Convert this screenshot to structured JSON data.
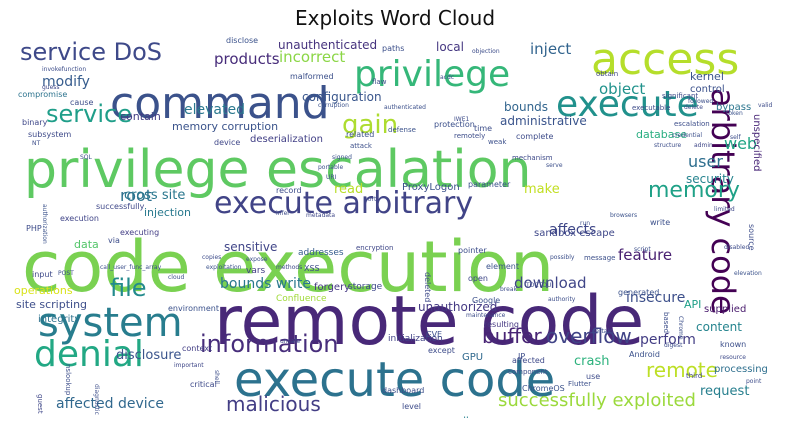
{
  "chart_data": {
    "type": "wordcloud",
    "title": "Exploits Word Cloud",
    "colormap": "viridis",
    "background": "#ffffff",
    "words": [
      {
        "text": "code execution",
        "weight": 1.0,
        "color": "#7ad151"
      },
      {
        "text": "remote code",
        "weight": 0.85,
        "color": "#482878"
      },
      {
        "text": "privilege escalation",
        "weight": 0.8,
        "color": "#5ec962"
      },
      {
        "text": "execute code",
        "weight": 0.62,
        "color": "#2c728e"
      },
      {
        "text": "command",
        "weight": 0.55,
        "color": "#3b528b"
      },
      {
        "text": "access",
        "weight": 0.5,
        "color": "#b5de2b"
      },
      {
        "text": "system",
        "weight": 0.48,
        "color": "#287d8e"
      },
      {
        "text": "execute arbitrary",
        "weight": 0.45,
        "color": "#414487"
      },
      {
        "text": "execute",
        "weight": 0.45,
        "color": "#21918c"
      },
      {
        "text": "denial",
        "weight": 0.42,
        "color": "#22a884"
      },
      {
        "text": "arbitrary code",
        "weight": 0.42,
        "color": "#440154"
      },
      {
        "text": "privilege",
        "weight": 0.4,
        "color": "#35b779"
      },
      {
        "text": "information",
        "weight": 0.32,
        "color": "#472d7b"
      },
      {
        "text": "service DoS",
        "weight": 0.3,
        "color": "#3e4989"
      },
      {
        "text": "service",
        "weight": 0.3,
        "color": "#1f9e89"
      },
      {
        "text": "gain",
        "weight": 0.28,
        "color": "#addc30"
      },
      {
        "text": "file",
        "weight": 0.28,
        "color": "#238a8d"
      },
      {
        "text": "malicious",
        "weight": 0.26,
        "color": "#433e85"
      },
      {
        "text": "buffer",
        "weight": 0.25,
        "color": "#482475"
      },
      {
        "text": "overflow",
        "weight": 0.25,
        "color": "#414487"
      },
      {
        "text": "successfully exploited",
        "weight": 0.22,
        "color": "#9bd93c"
      },
      {
        "text": "function",
        "weight": 0.22,
        "color": "#31688e"
      },
      {
        "text": "memory",
        "weight": 0.22,
        "color": "#1fa187"
      },
      {
        "text": "remote",
        "weight": 0.22,
        "color": "#bddf26"
      },
      {
        "text": "affected device",
        "weight": 0.2,
        "color": "#31688e"
      },
      {
        "text": "products",
        "weight": 0.2,
        "color": "#472c7a"
      },
      {
        "text": "web",
        "weight": 0.2,
        "color": "#21a685"
      },
      {
        "text": "root",
        "weight": 0.2,
        "color": "#2d708e"
      },
      {
        "text": "user",
        "weight": 0.2,
        "color": "#2e6e8e"
      },
      {
        "text": "inject",
        "weight": 0.2,
        "color": "#32648e"
      },
      {
        "text": "elevated",
        "weight": 0.19,
        "color": "#2a788e"
      },
      {
        "text": "modify",
        "weight": 0.18,
        "color": "#365c8d"
      },
      {
        "text": "disclosure",
        "weight": 0.18,
        "color": "#3a548c"
      },
      {
        "text": "feature",
        "weight": 0.18,
        "color": "#482071"
      },
      {
        "text": "object",
        "weight": 0.18,
        "color": "#20928c"
      },
      {
        "text": "download",
        "weight": 0.18,
        "color": "#404688"
      },
      {
        "text": "bounds write",
        "weight": 0.17,
        "color": "#2a788e"
      },
      {
        "text": "perform",
        "weight": 0.17,
        "color": "#433d84"
      },
      {
        "text": "request",
        "weight": 0.16,
        "color": "#277f8e"
      },
      {
        "text": "incorrect",
        "weight": 0.16,
        "color": "#8bd646"
      },
      {
        "text": "configuration",
        "weight": 0.15,
        "color": "#39568c"
      },
      {
        "text": "unauthenticated",
        "weight": 0.15,
        "color": "#46337e"
      },
      {
        "text": "local",
        "weight": 0.15,
        "color": "#453781"
      },
      {
        "text": "cross site",
        "weight": 0.15,
        "color": "#2a778e"
      },
      {
        "text": "affects",
        "weight": 0.15,
        "color": "#3f4788"
      },
      {
        "text": "make",
        "weight": 0.15,
        "color": "#c2df23"
      },
      {
        "text": "memory corruption",
        "weight": 0.14,
        "color": "#3a538b"
      },
      {
        "text": "bounds",
        "weight": 0.14,
        "color": "#32658e"
      },
      {
        "text": "administrative",
        "weight": 0.13,
        "color": "#3a548c"
      },
      {
        "text": "insecure",
        "weight": 0.14,
        "color": "#3c4f8a"
      },
      {
        "text": "crash",
        "weight": 0.13,
        "color": "#2db27d"
      },
      {
        "text": "read",
        "weight": 0.13,
        "color": "#b8de29"
      },
      {
        "text": "security",
        "weight": 0.13,
        "color": "#25838e"
      },
      {
        "text": "sensitive",
        "weight": 0.12,
        "color": "#404588"
      },
      {
        "text": "database",
        "weight": 0.12,
        "color": "#28ae80"
      },
      {
        "text": "kernel",
        "weight": 0.12,
        "color": "#3a538b"
      },
      {
        "text": "unauthorized",
        "weight": 0.12,
        "color": "#443983"
      },
      {
        "text": "content",
        "weight": 0.12,
        "color": "#25848e"
      },
      {
        "text": "site scripting",
        "weight": 0.11,
        "color": "#3d4e8a"
      },
      {
        "text": "operations",
        "weight": 0.11,
        "color": "#d8e219"
      },
      {
        "text": "data",
        "weight": 0.11,
        "color": "#52c569"
      },
      {
        "text": "injection",
        "weight": 0.11,
        "color": "#29798e"
      },
      {
        "text": "contain",
        "weight": 0.1,
        "color": "#433e85"
      },
      {
        "text": "deserialization",
        "weight": 0.1,
        "color": "#424086"
      },
      {
        "text": "sandbox escape",
        "weight": 0.09,
        "color": "#3f4889"
      },
      {
        "text": "ProxyLogon",
        "weight": 0.09,
        "color": "#3b518b"
      },
      {
        "text": "API",
        "weight": 0.09,
        "color": "#1fa088"
      },
      {
        "text": "forgery",
        "weight": 0.09,
        "color": "#453882"
      },
      {
        "text": "supplied",
        "weight": 0.09,
        "color": "#481a6c"
      },
      {
        "text": "integrity",
        "weight": 0.09,
        "color": "#2c728e"
      },
      {
        "text": "sandbox",
        "weight": 0.09,
        "color": "#26818e"
      },
      {
        "text": "GPU",
        "weight": 0.09,
        "color": "#30698e"
      },
      {
        "text": "unspecified",
        "weight": 0.09,
        "color": "#482677"
      },
      {
        "text": "processing",
        "weight": 0.09,
        "color": "#2e6f8e"
      },
      {
        "text": "specific",
        "weight": 0.09,
        "color": "#48186a"
      },
      {
        "text": "addresses",
        "weight": 0.08,
        "color": "#365d8d"
      },
      {
        "text": "vars",
        "weight": 0.08,
        "color": "#433d84"
      },
      {
        "text": "storage",
        "weight": 0.08,
        "color": "#3e4989"
      },
      {
        "text": "Confluence",
        "weight": 0.08,
        "color": "#a0da39"
      },
      {
        "text": "subsystem",
        "weight": 0.08,
        "color": "#3e4a89"
      },
      {
        "text": "execution",
        "weight": 0.08,
        "color": "#404588"
      },
      {
        "text": "compromise",
        "weight": 0.08,
        "color": "#2c738e"
      },
      {
        "text": "malformed",
        "weight": 0.08,
        "color": "#3c508b"
      },
      {
        "text": "bypass",
        "weight": 0.08,
        "color": "#2b758e"
      },
      {
        "text": "control",
        "weight": 0.08,
        "color": "#3b518b"
      },
      {
        "text": "exploited",
        "weight": 0.08,
        "color": "#3b528b"
      },
      {
        "text": "initialization",
        "weight": 0.07,
        "color": "#414287"
      },
      {
        "text": "dashboard",
        "weight": 0.07,
        "color": "#3c4f8a"
      },
      {
        "text": "source",
        "weight": 0.07,
        "color": "#3d4d8a"
      },
      {
        "text": "context",
        "weight": 0.07,
        "color": "#433e85"
      },
      {
        "text": "environment",
        "weight": 0.07,
        "color": "#3b518b"
      },
      {
        "text": "disclose",
        "weight": 0.07,
        "color": "#3b528b"
      },
      {
        "text": "cause",
        "weight": 0.07,
        "color": "#3d4e8a"
      },
      {
        "text": "binary",
        "weight": 0.07,
        "color": "#3f4889"
      },
      {
        "text": "successfully",
        "weight": 0.07,
        "color": "#3f4889"
      },
      {
        "text": "executing",
        "weight": 0.07,
        "color": "#433e85"
      },
      {
        "text": "element",
        "weight": 0.07,
        "color": "#3b528b"
      },
      {
        "text": "Google",
        "weight": 0.07,
        "color": "#3c508b"
      },
      {
        "text": "resulting",
        "weight": 0.07,
        "color": "#453781"
      },
      {
        "text": "deleted",
        "weight": 0.07,
        "color": "#3e4a89"
      },
      {
        "text": "except",
        "weight": 0.07,
        "color": "#3e4c8a"
      },
      {
        "text": "affected",
        "weight": 0.07,
        "color": "#3e4989"
      },
      {
        "text": "component",
        "weight": 0.07,
        "color": "#3d4e8a"
      },
      {
        "text": "Android",
        "weight": 0.07,
        "color": "#3b518b"
      },
      {
        "text": "ChromeOS",
        "weight": 0.07,
        "color": "#3b528b"
      },
      {
        "text": "Flutter",
        "weight": 0.07,
        "color": "#3c508b"
      },
      {
        "text": "record",
        "weight": 0.07,
        "color": "#3d4d8a"
      },
      {
        "text": "level",
        "weight": 0.07,
        "color": "#3e4c8a"
      },
      {
        "text": "input",
        "weight": 0.07,
        "color": "#3e4a89"
      },
      {
        "text": "third",
        "weight": 0.06,
        "color": "#3f4788"
      },
      {
        "text": "time",
        "weight": 0.06,
        "color": "#3d4e8a"
      },
      {
        "text": "paths",
        "weight": 0.06,
        "color": "#3c4f8a"
      },
      {
        "text": "related",
        "weight": 0.06,
        "color": "#3b528b"
      },
      {
        "text": "protection",
        "weight": 0.06,
        "color": "#3c508b"
      },
      {
        "text": "remotely",
        "weight": 0.06,
        "color": "#3d4d8a"
      },
      {
        "text": "complete",
        "weight": 0.06,
        "color": "#3e4c8a"
      },
      {
        "text": "mechanism",
        "weight": 0.06,
        "color": "#3e4a89"
      },
      {
        "text": "encryption",
        "weight": 0.06,
        "color": "#3f4788"
      },
      {
        "text": "pointer",
        "weight": 0.06,
        "color": "#3d4e8a"
      },
      {
        "text": "message",
        "weight": 0.06,
        "color": "#3c4f8a"
      },
      {
        "text": "parameter",
        "weight": 0.06,
        "color": "#3b528b"
      },
      {
        "text": "write",
        "weight": 0.06,
        "color": "#3c508b"
      },
      {
        "text": "via",
        "weight": 0.06,
        "color": "#3d4d8a"
      },
      {
        "text": "PHP",
        "weight": 0.06,
        "color": "#3e4c8a"
      },
      {
        "text": "XSS",
        "weight": 0.06,
        "color": "#3e4a89"
      },
      {
        "text": "open",
        "weight": 0.06,
        "color": "#3f4788"
      },
      {
        "text": "based",
        "weight": 0.06,
        "color": "#3d4e8a"
      },
      {
        "text": "known",
        "weight": 0.06,
        "color": "#3c4f8a"
      },
      {
        "text": "generated",
        "weight": 0.06,
        "color": "#3b528b"
      },
      {
        "text": "CVE",
        "weight": 0.06,
        "color": "#3c508b"
      },
      {
        "text": "IP",
        "weight": 0.06,
        "color": "#3d4d8a"
      },
      {
        "text": "use",
        "weight": 0.06,
        "color": "#3e4c8a"
      },
      {
        "text": "critical",
        "weight": 0.06,
        "color": "#3e4a89"
      },
      {
        "text": "guest",
        "weight": 0.06,
        "color": "#3f4788"
      },
      {
        "text": "nslookup",
        "weight": 0.06,
        "color": "#3d4e8a"
      },
      {
        "text": "attack",
        "weight": 0.05,
        "color": "#3c4f8a"
      },
      {
        "text": "defense",
        "weight": 0.05,
        "color": "#3b528b"
      },
      {
        "text": "weak",
        "weight": 0.05,
        "color": "#3c508b"
      },
      {
        "text": "flaw",
        "weight": 0.05,
        "color": "#3d4d8a"
      },
      {
        "text": "executable",
        "weight": 0.05,
        "color": "#3e4c8a"
      },
      {
        "text": "significant",
        "weight": 0.05,
        "color": "#3e4a89"
      },
      {
        "text": "obtain",
        "weight": 0.05,
        "color": "#3f4788"
      },
      {
        "text": "escalation",
        "weight": 0.05,
        "color": "#3d4e8a"
      },
      {
        "text": "followed",
        "weight": 0.05,
        "color": "#3c4f8a"
      },
      {
        "text": "token",
        "weight": 0.05,
        "color": "#3b528b"
      },
      {
        "text": "credential",
        "weight": 0.05,
        "color": "#3c508b"
      },
      {
        "text": "self",
        "weight": 0.05,
        "color": "#3d4d8a"
      },
      {
        "text": "valid",
        "weight": 0.05,
        "color": "#3e4c8a"
      },
      {
        "text": "delete",
        "weight": 0.05,
        "color": "#3e4a89"
      },
      {
        "text": "admin",
        "weight": 0.05,
        "color": "#3f4788"
      },
      {
        "text": "structure",
        "weight": 0.05,
        "color": "#3d4e8a"
      },
      {
        "text": "serve",
        "weight": 0.05,
        "color": "#3c4f8a"
      },
      {
        "text": "signed",
        "weight": 0.05,
        "color": "#3b528b"
      },
      {
        "text": "portable",
        "weight": 0.05,
        "color": "#3c508b"
      },
      {
        "text": "URI",
        "weight": 0.05,
        "color": "#3d4d8a"
      },
      {
        "text": "infer",
        "weight": 0.05,
        "color": "#3e4c8a"
      },
      {
        "text": "port",
        "weight": 0.05,
        "color": "#3e4a89"
      },
      {
        "text": "metadata",
        "weight": 0.05,
        "color": "#3f4788"
      },
      {
        "text": "run",
        "weight": 0.05,
        "color": "#3d4e8a"
      },
      {
        "text": "possibly",
        "weight": 0.05,
        "color": "#3c4f8a"
      },
      {
        "text": "browsers",
        "weight": 0.05,
        "color": "#3b528b"
      },
      {
        "text": "script",
        "weight": 0.05,
        "color": "#3c508b"
      },
      {
        "text": "break",
        "weight": 0.05,
        "color": "#3d4d8a"
      },
      {
        "text": "maintenance",
        "weight": 0.05,
        "color": "#3e4c8a"
      },
      {
        "text": "TOCTOU",
        "weight": 0.05,
        "color": "#3e4a89"
      },
      {
        "text": "limited",
        "weight": 0.05,
        "color": "#3f4788"
      },
      {
        "text": "authority",
        "weight": 0.05,
        "color": "#3d4e8a"
      },
      {
        "text": "Chrome",
        "weight": 0.05,
        "color": "#3c4f8a"
      },
      {
        "text": "elevation",
        "weight": 0.05,
        "color": "#3b528b"
      },
      {
        "text": "certain",
        "weight": 0.05,
        "color": "#3c508b"
      },
      {
        "text": "digest",
        "weight": 0.05,
        "color": "#3d4d8a"
      },
      {
        "text": "point",
        "weight": 0.05,
        "color": "#3e4c8a"
      },
      {
        "text": "unsafe",
        "weight": 0.05,
        "color": "#3e4a89"
      },
      {
        "text": "important",
        "weight": 0.05,
        "color": "#3f4788"
      },
      {
        "text": "diagnostic",
        "weight": 0.05,
        "color": "#3d4e8a"
      },
      {
        "text": "POST",
        "weight": 0.05,
        "color": "#3c4f8a"
      },
      {
        "text": "authorization",
        "weight": 0.05,
        "color": "#3b528b"
      },
      {
        "text": "call_user_func_array",
        "weight": 0.05,
        "color": "#3c508b"
      },
      {
        "text": "invokefunction",
        "weight": 0.05,
        "color": "#3d4d8a"
      },
      {
        "text": "copies",
        "weight": 0.05,
        "color": "#3e4c8a"
      },
      {
        "text": "methods",
        "weight": 0.05,
        "color": "#3e4a89"
      },
      {
        "text": "guess",
        "weight": 0.05,
        "color": "#3f4788"
      },
      {
        "text": "NT",
        "weight": 0.05,
        "color": "#3d4e8a"
      },
      {
        "text": "SQL",
        "weight": 0.05,
        "color": "#3c4f8a"
      },
      {
        "text": "corruption",
        "weight": 0.05,
        "color": "#3b528b"
      },
      {
        "text": "authenticated",
        "weight": 0.05,
        "color": "#3c508b"
      },
      {
        "text": "objection",
        "weight": 0.05,
        "color": "#3d4d8a"
      },
      {
        "text": "IWE1",
        "weight": 0.05,
        "color": "#3e4c8a"
      },
      {
        "text": "resource",
        "weight": 0.05,
        "color": "#3e4a89"
      },
      {
        "text": "device",
        "weight": 0.06,
        "color": "#3f4788"
      },
      {
        "text": "shell",
        "weight": 0.05,
        "color": "#3d4e8a"
      },
      {
        "text": "cloud",
        "weight": 0.05,
        "color": "#3c4f8a"
      },
      {
        "text": "exploitation",
        "weight": 0.05,
        "color": "#3b528b"
      },
      {
        "text": "expose",
        "weight": 0.05,
        "color": "#3c508b"
      },
      {
        "text": "acdc",
        "weight": 0.05,
        "color": "#3d4d8a"
      },
      {
        "text": "disabled",
        "weight": 0.05,
        "color": "#3e4c8a"
      }
    ]
  }
}
